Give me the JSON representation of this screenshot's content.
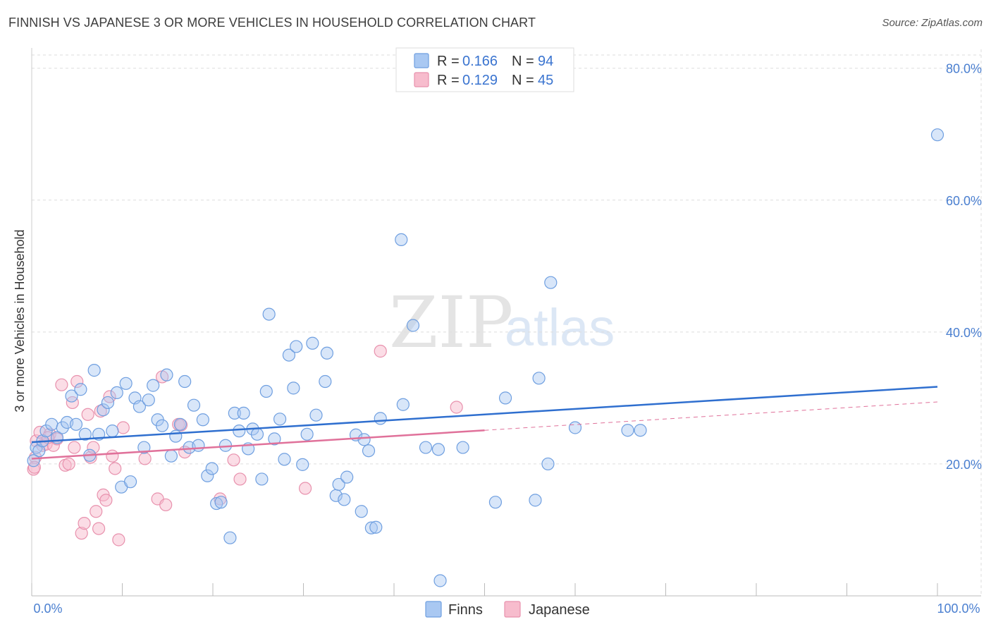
{
  "title": "FINNISH VS JAPANESE 3 OR MORE VEHICLES IN HOUSEHOLD CORRELATION CHART",
  "source": "Source: ZipAtlas.com",
  "watermark": {
    "zip": "ZIP",
    "atlas": "atlas"
  },
  "colors": {
    "finns_fill": "#a9c8f2",
    "finns_stroke": "#6f9fe0",
    "finns_line": "#2f6fcf",
    "japanese_fill": "#f7bccd",
    "japanese_stroke": "#e891ad",
    "japanese_line": "#e0719a",
    "grid": "#dddddd",
    "axis_text": "#4a7fd0"
  },
  "legend": {
    "finns": {
      "r_label": "R = ",
      "r_value": "0.166",
      "n_label": "N = ",
      "n_value": "94"
    },
    "japanese": {
      "r_label": "R = ",
      "r_value": "0.129",
      "n_label": "N = ",
      "n_value": "45"
    }
  },
  "bottom_legend": {
    "finns": "Finns",
    "japanese": "Japanese"
  },
  "chart_data": {
    "type": "scatter",
    "title": "FINNISH VS JAPANESE 3 OR MORE VEHICLES IN HOUSEHOLD CORRELATION CHART",
    "xlabel": "",
    "ylabel": "3 or more Vehicles in Household",
    "xlim": [
      0,
      100
    ],
    "ylim": [
      0,
      82
    ],
    "x_tick_labels": [
      "0.0%",
      "100.0%"
    ],
    "y_ticks": [
      20,
      40,
      60,
      80
    ],
    "y_tick_labels": [
      "20.0%",
      "40.0%",
      "60.0%",
      "80.0%"
    ],
    "grid": true,
    "legend_position": "top-center",
    "series": [
      {
        "name": "Finns",
        "r": 0.166,
        "n": 94,
        "trend": {
          "x0": 0,
          "y0": 23.3,
          "x1": 100,
          "y1": 31.7,
          "dashed_from": null
        },
        "points": [
          [
            0.5,
            22.5
          ],
          [
            0.8,
            22.0
          ],
          [
            1.2,
            23.5
          ],
          [
            1.6,
            25.0
          ],
          [
            2.2,
            26.0
          ],
          [
            2.8,
            24.0
          ],
          [
            3.4,
            25.5
          ],
          [
            3.9,
            26.3
          ],
          [
            4.4,
            30.3
          ],
          [
            4.9,
            26.0
          ],
          [
            5.4,
            31.3
          ],
          [
            5.9,
            24.5
          ],
          [
            6.4,
            21.3
          ],
          [
            6.9,
            34.2
          ],
          [
            7.4,
            24.5
          ],
          [
            7.9,
            28.2
          ],
          [
            8.4,
            29.3
          ],
          [
            8.9,
            25.0
          ],
          [
            9.4,
            30.8
          ],
          [
            9.9,
            16.5
          ],
          [
            10.4,
            32.2
          ],
          [
            10.9,
            17.3
          ],
          [
            11.4,
            30.0
          ],
          [
            11.9,
            28.7
          ],
          [
            12.4,
            22.5
          ],
          [
            12.9,
            29.7
          ],
          [
            13.4,
            31.9
          ],
          [
            13.9,
            26.7
          ],
          [
            14.4,
            25.8
          ],
          [
            14.9,
            33.5
          ],
          [
            15.4,
            21.2
          ],
          [
            15.9,
            24.2
          ],
          [
            16.4,
            26.0
          ],
          [
            16.9,
            32.5
          ],
          [
            17.4,
            22.5
          ],
          [
            17.9,
            28.9
          ],
          [
            18.4,
            22.8
          ],
          [
            18.9,
            26.7
          ],
          [
            19.4,
            18.2
          ],
          [
            19.9,
            19.3
          ],
          [
            20.4,
            14.0
          ],
          [
            20.9,
            14.2
          ],
          [
            21.4,
            22.8
          ],
          [
            21.9,
            8.8
          ],
          [
            22.4,
            27.7
          ],
          [
            22.9,
            25.0
          ],
          [
            23.4,
            27.7
          ],
          [
            23.9,
            22.3
          ],
          [
            24.4,
            25.3
          ],
          [
            24.9,
            24.5
          ],
          [
            25.4,
            17.7
          ],
          [
            25.9,
            31.0
          ],
          [
            26.2,
            42.7
          ],
          [
            26.8,
            23.8
          ],
          [
            27.4,
            26.8
          ],
          [
            27.9,
            20.7
          ],
          [
            28.4,
            36.5
          ],
          [
            28.9,
            31.5
          ],
          [
            29.2,
            37.8
          ],
          [
            29.9,
            19.9
          ],
          [
            30.4,
            24.5
          ],
          [
            31.0,
            38.3
          ],
          [
            31.4,
            27.4
          ],
          [
            32.4,
            32.5
          ],
          [
            32.6,
            36.8
          ],
          [
            33.6,
            15.2
          ],
          [
            33.9,
            16.9
          ],
          [
            34.5,
            14.6
          ],
          [
            34.8,
            18.0
          ],
          [
            35.8,
            24.4
          ],
          [
            36.4,
            12.8
          ],
          [
            36.7,
            23.7
          ],
          [
            37.2,
            22.0
          ],
          [
            37.5,
            10.3
          ],
          [
            38.0,
            10.4
          ],
          [
            38.5,
            26.9
          ],
          [
            40.8,
            54.0
          ],
          [
            41.0,
            29.0
          ],
          [
            42.1,
            41.0
          ],
          [
            43.5,
            22.5
          ],
          [
            44.9,
            22.2
          ],
          [
            45.1,
            2.3
          ],
          [
            47.6,
            22.5
          ],
          [
            51.2,
            14.2
          ],
          [
            52.3,
            30.0
          ],
          [
            55.6,
            14.5
          ],
          [
            56.0,
            33.0
          ],
          [
            57.0,
            20.0
          ],
          [
            57.3,
            47.5
          ],
          [
            60.0,
            25.5
          ],
          [
            65.8,
            25.1
          ],
          [
            67.2,
            25.1
          ],
          [
            100.0,
            69.9
          ],
          [
            0.2,
            20.5
          ]
        ]
      },
      {
        "name": "Japanese",
        "r": 0.129,
        "n": 45,
        "trend": {
          "x0": 0,
          "y0": 20.8,
          "x1": 100,
          "y1": 29.4,
          "dashed_from": 50
        },
        "points": [
          [
            0.2,
            19.2
          ],
          [
            0.5,
            23.5
          ],
          [
            0.9,
            24.8
          ],
          [
            1.2,
            22.8
          ],
          [
            1.6,
            23.0
          ],
          [
            2.0,
            24.5
          ],
          [
            2.4,
            22.8
          ],
          [
            2.8,
            23.8
          ],
          [
            3.3,
            32.0
          ],
          [
            3.7,
            19.8
          ],
          [
            4.1,
            20.0
          ],
          [
            4.5,
            29.3
          ],
          [
            4.7,
            22.5
          ],
          [
            5.0,
            32.5
          ],
          [
            5.5,
            9.5
          ],
          [
            5.8,
            11.0
          ],
          [
            6.2,
            27.5
          ],
          [
            6.5,
            21.0
          ],
          [
            6.8,
            22.5
          ],
          [
            7.1,
            12.8
          ],
          [
            7.4,
            10.2
          ],
          [
            7.6,
            28.0
          ],
          [
            7.9,
            15.3
          ],
          [
            8.2,
            14.5
          ],
          [
            8.6,
            30.2
          ],
          [
            8.9,
            21.2
          ],
          [
            9.2,
            19.3
          ],
          [
            9.6,
            8.5
          ],
          [
            10.1,
            25.5
          ],
          [
            12.5,
            20.8
          ],
          [
            13.9,
            14.7
          ],
          [
            14.4,
            33.2
          ],
          [
            14.8,
            13.8
          ],
          [
            16.2,
            26.0
          ],
          [
            16.5,
            25.9
          ],
          [
            16.9,
            21.8
          ],
          [
            20.8,
            14.7
          ],
          [
            22.3,
            20.6
          ],
          [
            23.0,
            17.7
          ],
          [
            30.2,
            16.3
          ],
          [
            38.5,
            37.1
          ],
          [
            46.9,
            28.6
          ],
          [
            0.4,
            21.0
          ],
          [
            0.3,
            19.5
          ],
          [
            1.8,
            24.0
          ]
        ]
      }
    ]
  }
}
